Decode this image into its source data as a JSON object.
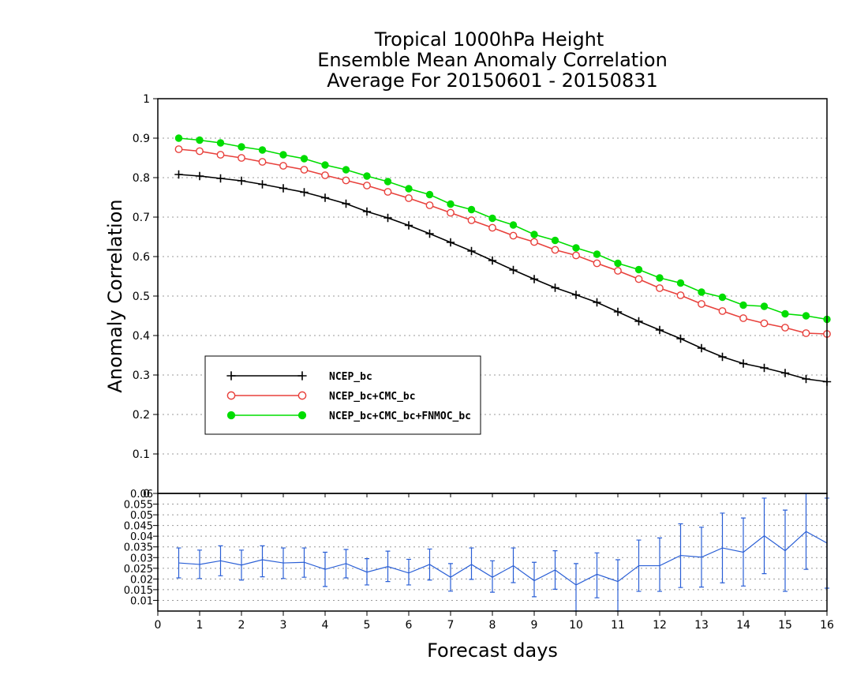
{
  "chart_data": [
    {
      "type": "line",
      "title": "Tropical 1000hPa Height",
      "subtitle": "Ensemble Mean Anomaly Correlation",
      "subtitle2": "Average For 20150601 - 20150831",
      "xlabel": "Forecast days",
      "ylabel": "Anomaly Correlation",
      "xlim": [
        0,
        16
      ],
      "ylim": [
        0,
        1
      ],
      "x_ticks": [
        "0",
        "1",
        "2",
        "3",
        "4",
        "5",
        "6",
        "7",
        "8",
        "9",
        "10",
        "11",
        "12",
        "13",
        "14",
        "15",
        "16"
      ],
      "y_ticks": [
        "0",
        "0.1",
        "0.2",
        "0.3",
        "0.4",
        "0.5",
        "0.6",
        "0.7",
        "0.8",
        "0.9",
        "1"
      ],
      "grid": true,
      "legend_placement": "lower-left",
      "x": [
        0.5,
        1,
        1.5,
        2,
        2.5,
        3,
        3.5,
        4,
        4.5,
        5,
        5.5,
        6,
        6.5,
        7,
        7.5,
        8,
        8.5,
        9,
        9.5,
        10,
        10.5,
        11,
        11.5,
        12,
        12.5,
        13,
        13.5,
        14,
        14.5,
        15,
        15.5,
        16
      ],
      "series": [
        {
          "name": "NCEP_bc",
          "color": "#000000",
          "marker": "plus",
          "values": [
            0.808,
            0.804,
            0.798,
            0.792,
            0.783,
            0.773,
            0.763,
            0.749,
            0.734,
            0.714,
            0.698,
            0.679,
            0.658,
            0.636,
            0.614,
            0.59,
            0.566,
            0.543,
            0.521,
            0.503,
            0.484,
            0.46,
            0.436,
            0.414,
            0.392,
            0.368,
            0.346,
            0.329,
            0.318,
            0.305,
            0.29,
            0.283
          ]
        },
        {
          "name": "NCEP_bc+CMC_bc",
          "color": "#e8413c",
          "marker": "open-circle",
          "values": [
            0.872,
            0.867,
            0.858,
            0.85,
            0.84,
            0.83,
            0.82,
            0.806,
            0.793,
            0.78,
            0.764,
            0.748,
            0.73,
            0.711,
            0.692,
            0.673,
            0.653,
            0.637,
            0.617,
            0.603,
            0.583,
            0.564,
            0.543,
            0.52,
            0.502,
            0.48,
            0.462,
            0.444,
            0.431,
            0.42,
            0.406,
            0.404
          ]
        },
        {
          "name": "NCEP_bc+CMC_bc+FNMOC_bc",
          "color": "#00dd00",
          "marker": "filled-circle",
          "values": [
            0.9,
            0.895,
            0.888,
            0.878,
            0.87,
            0.858,
            0.848,
            0.832,
            0.82,
            0.804,
            0.79,
            0.772,
            0.757,
            0.733,
            0.719,
            0.697,
            0.68,
            0.656,
            0.641,
            0.622,
            0.606,
            0.583,
            0.567,
            0.546,
            0.533,
            0.51,
            0.497,
            0.477,
            0.474,
            0.455,
            0.45,
            0.441
          ]
        }
      ]
    },
    {
      "type": "line",
      "title": "",
      "xlabel": "Forecast days",
      "ylim": [
        0.005,
        0.06
      ],
      "y_ticks": [
        "0.01",
        "0.015",
        "0.02",
        "0.025",
        "0.03",
        "0.035",
        "0.04",
        "0.045",
        "0.05",
        "0.055",
        "0.06"
      ],
      "grid": true,
      "x": [
        0.5,
        1,
        1.5,
        2,
        2.5,
        3,
        3.5,
        4,
        4.5,
        5,
        5.5,
        6,
        6.5,
        7,
        7.5,
        8,
        8.5,
        9,
        9.5,
        10,
        10.5,
        11,
        11.5,
        12,
        12.5,
        13,
        13.5,
        14,
        14.5,
        15,
        15.5,
        16
      ],
      "series": [
        {
          "name": "",
          "color": "#2a5fd6",
          "error_bars": true,
          "values": [
            0.0275,
            0.0268,
            0.0285,
            0.0265,
            0.029,
            0.0275,
            0.0278,
            0.0245,
            0.0272,
            0.0232,
            0.0258,
            0.0228,
            0.0268,
            0.0208,
            0.0268,
            0.0208,
            0.0262,
            0.0192,
            0.0242,
            0.0172,
            0.0222,
            0.0188,
            0.0262,
            0.0262,
            0.031,
            0.0302,
            0.0345,
            0.0325,
            0.0402,
            0.0332,
            0.0422,
            0.0368
          ],
          "err_low": [
            0.0205,
            0.0202,
            0.0215,
            0.0195,
            0.021,
            0.0202,
            0.0208,
            0.0165,
            0.0205,
            0.0172,
            0.0188,
            0.0172,
            0.0195,
            0.0143,
            0.0198,
            0.0138,
            0.0183,
            0.0117,
            0.0152,
            0.005,
            0.0112,
            0.005,
            0.0142,
            0.0142,
            0.016,
            0.0162,
            0.0182,
            0.0167,
            0.0225,
            0.0142,
            0.0245,
            0.0157
          ],
          "err_high": [
            0.0345,
            0.0335,
            0.0355,
            0.0335,
            0.0355,
            0.0345,
            0.0345,
            0.0325,
            0.0338,
            0.0295,
            0.033,
            0.0292,
            0.034,
            0.0272,
            0.0345,
            0.0285,
            0.0345,
            0.0278,
            0.0332,
            0.0272,
            0.0322,
            0.029,
            0.0382,
            0.0392,
            0.0458,
            0.0442,
            0.0508,
            0.0485,
            0.0578,
            0.0522,
            0.06,
            0.0578
          ]
        }
      ]
    }
  ]
}
